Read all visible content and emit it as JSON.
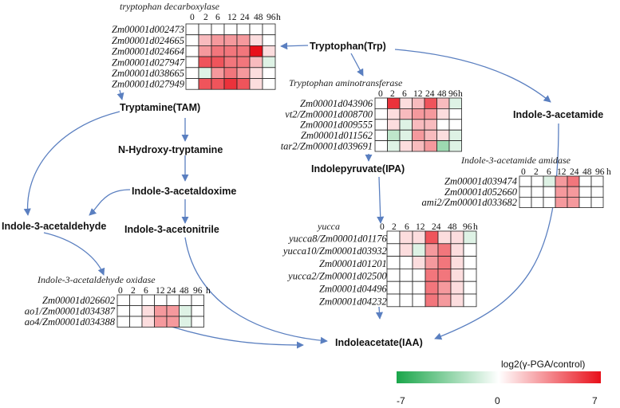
{
  "nodes": {
    "trp": "Tryptophan(Trp)",
    "tam": "Tryptamine(TAM)",
    "nhydroxy": "N-Hydroxy-tryptamine",
    "iaox": "Indole-3-acetaldoxime",
    "iaald": "Indole-3-acetaldehyde",
    "ian": "Indole-3-acetonitrile",
    "ipa": "Indolepyruvate(IPA)",
    "iam": "Indole-3-acetamide",
    "iaa": "Indoleacetate(IAA)"
  },
  "timepoints": [
    "0",
    "2",
    "6",
    "12",
    "24",
    "48",
    "96",
    "h"
  ],
  "heatmaps": [
    {
      "id": "tdc",
      "title": "tryptophan decarboxylase",
      "genes": [
        "Zm00001d002473",
        "Zm00001d024665",
        "Zm00001d024664",
        "Zm00001d027947",
        "Zm00001d038665",
        "Zm00001d027949"
      ],
      "values": [
        [
          0,
          0,
          0,
          0,
          0,
          0,
          0
        ],
        [
          0,
          2,
          3,
          3,
          3,
          1,
          0
        ],
        [
          0,
          3,
          4,
          4,
          4,
          7,
          1
        ],
        [
          0,
          5,
          5,
          4,
          4,
          2,
          -1
        ],
        [
          0,
          -1,
          3,
          4,
          3,
          1,
          0
        ],
        [
          0,
          5,
          5,
          6,
          5,
          1,
          0
        ]
      ]
    },
    {
      "id": "taa",
      "title": "Tryptophan aminotransferase",
      "genes": [
        "Zm00001d043906",
        "vt2/Zm00001d008700",
        "Zm00001d009555",
        "Zm00001d011562",
        "tar2/Zm00001d039691"
      ],
      "values": [
        [
          0,
          6,
          1,
          2,
          5,
          2,
          -1
        ],
        [
          0,
          1,
          2,
          3,
          3,
          1,
          0
        ],
        [
          0,
          1,
          -1,
          2,
          2,
          0,
          0
        ],
        [
          0,
          -2,
          -1,
          3,
          2,
          1,
          -1
        ],
        [
          0,
          -1,
          1,
          2,
          3,
          -3,
          -1
        ]
      ]
    },
    {
      "id": "amidase",
      "title": "Indole-3-acetamide amidase",
      "genes": [
        "Zm00001d039474",
        "Zm00001d052660",
        "ami2/Zm00001d033682"
      ],
      "values": [
        [
          0,
          0,
          -1,
          3,
          4,
          0,
          0
        ],
        [
          0,
          0,
          0,
          3,
          3,
          0,
          0
        ],
        [
          0,
          0,
          0,
          3,
          3,
          0,
          0
        ]
      ]
    },
    {
      "id": "yucca",
      "title": "yucca",
      "genes": [
        "yucca8/Zm00001d011764",
        "yucca10/Zm00001d039323",
        "Zm00001d012017",
        "yucca2/Zm00001d025005",
        "Zm00001d044961",
        "Zm00001d042329"
      ],
      "values": [
        [
          0,
          1,
          1,
          5,
          1,
          1,
          -1
        ],
        [
          0,
          1,
          -1,
          3,
          4,
          1,
          0
        ],
        [
          0,
          0,
          1,
          3,
          4,
          1,
          0
        ],
        [
          0,
          0,
          0,
          4,
          4,
          1,
          0
        ],
        [
          0,
          0,
          0,
          4,
          3,
          1,
          0
        ],
        [
          0,
          0,
          0,
          4,
          3,
          1,
          0
        ]
      ]
    },
    {
      "id": "aao",
      "title": "Indole-3-acetaldehyde oxidase",
      "genes": [
        "Zm00001d026602",
        "ao1/Zm00001d034387",
        "ao4/Zm00001d034388"
      ],
      "values": [
        [
          0,
          0,
          0,
          0,
          0,
          0,
          0
        ],
        [
          0,
          0,
          1,
          3,
          3,
          -1,
          0
        ],
        [
          0,
          0,
          1,
          3,
          3,
          -1,
          0
        ]
      ]
    }
  ],
  "legend": {
    "title": "log2(γ-PGA/control)",
    "min": "-7",
    "mid": "0",
    "max": "7",
    "colors": [
      "#1aa64a",
      "#ffffff",
      "#e8101a"
    ]
  }
}
